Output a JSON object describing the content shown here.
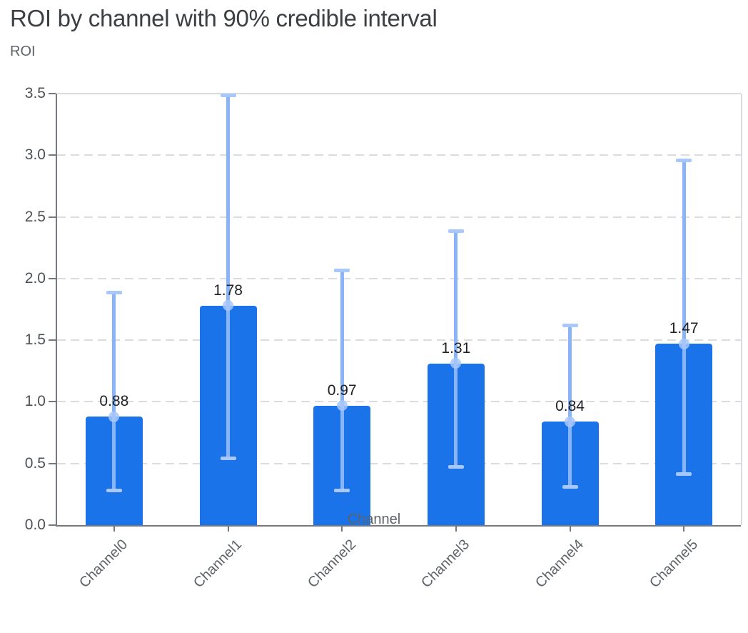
{
  "chart_data": {
    "type": "bar",
    "title": "ROI by channel with 90% credible interval",
    "ylabel": "ROI",
    "xlabel": "Channel",
    "categories": [
      "Channel0",
      "Channel1",
      "Channel2",
      "Channel3",
      "Channel4",
      "Channel5"
    ],
    "series": [
      {
        "name": "ROI",
        "values": [
          0.88,
          1.78,
          0.97,
          1.31,
          0.84,
          1.47
        ],
        "ci_low": [
          0.28,
          0.54,
          0.28,
          0.47,
          0.31,
          0.41
        ],
        "ci_high": [
          1.89,
          3.49,
          2.07,
          2.39,
          1.62,
          2.96
        ]
      }
    ],
    "value_labels": [
      "0.88",
      "1.78",
      "0.97",
      "1.31",
      "0.84",
      "1.47"
    ],
    "ylim": [
      0,
      3.5
    ],
    "yticks": [
      "0.0",
      "0.5",
      "1.0",
      "1.5",
      "2.0",
      "2.5",
      "3.0",
      "3.5"
    ],
    "grid": "dashed-horizontal",
    "legend": "none",
    "colors": {
      "bar": "#1a73e8",
      "error_line": "#8ab4f8",
      "error_cap": "#a8c7fa",
      "mean_dot": "#a8c7fa",
      "gridline": "#dadce0",
      "axis": "#75797e",
      "title_text": "#3c4043",
      "axis_text": "#5f6368",
      "value_label_text": "#202124"
    }
  }
}
